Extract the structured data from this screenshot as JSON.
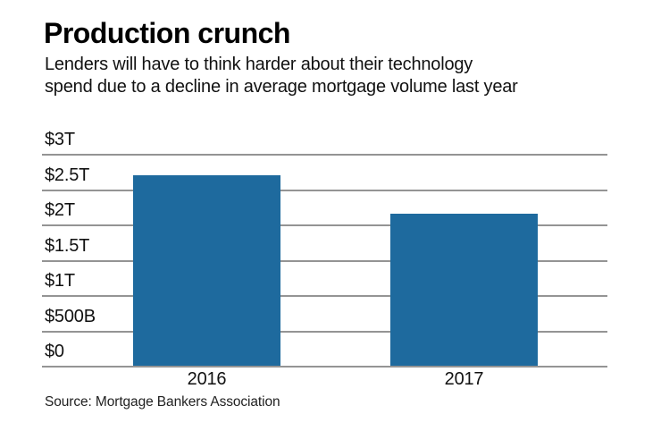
{
  "header": {
    "title": "Production crunch",
    "subtitle_line1": "Lenders will have to think harder about their technology",
    "subtitle_line2": "spend due to a decline in average mortgage volume last year"
  },
  "footer": {
    "source": "Source: Mortgage Bankers Association"
  },
  "colors": {
    "bar": "#1e6a9e",
    "gridline": "#949494",
    "text": "#111111"
  },
  "chart_data": {
    "type": "bar",
    "title": "Production crunch",
    "subtitle": "Lenders will have to think harder about their technology spend due to a decline in average mortgage volume last year",
    "categories": [
      "2016",
      "2017"
    ],
    "values": [
      2.7,
      2.15
    ],
    "value_unit": "trillions of USD",
    "xlabel": "",
    "ylabel": "",
    "ylim": [
      0,
      3
    ],
    "yticks": [
      {
        "value": 0,
        "label": "$0"
      },
      {
        "value": 0.5,
        "label": "$500B"
      },
      {
        "value": 1,
        "label": "$1T"
      },
      {
        "value": 1.5,
        "label": "$1.5T"
      },
      {
        "value": 2,
        "label": "$2T"
      },
      {
        "value": 2.5,
        "label": "$2.5T"
      },
      {
        "value": 3,
        "label": "$3T"
      }
    ],
    "grid": true,
    "legend": false,
    "source": "Source: Mortgage Bankers Association"
  }
}
